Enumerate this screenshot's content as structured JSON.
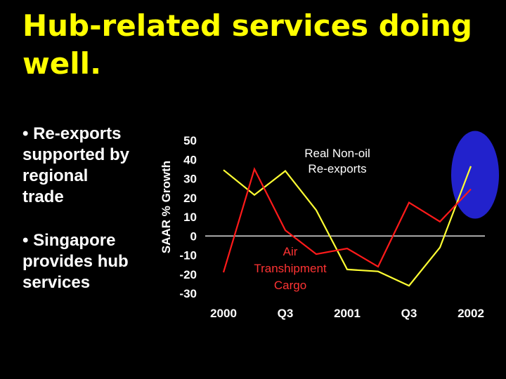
{
  "slide": {
    "title": "Hub-related services doing well.",
    "bullets": [
      "• Re-exports\nsupported by\nregional\ntrade",
      "• Singapore\nprovides hub\nservices"
    ]
  },
  "chart_data": {
    "type": "line",
    "ylabel": "SAAR % Growth",
    "ylim": [
      -30,
      50
    ],
    "yticks": [
      50,
      40,
      30,
      20,
      10,
      0,
      -10,
      -20,
      -30
    ],
    "x": [
      0,
      1,
      2,
      3,
      4,
      5,
      6,
      7,
      8
    ],
    "xtick_labels": [
      "2000",
      "Q3",
      "2001",
      "Q3",
      "2002"
    ],
    "xtick_positions": [
      0,
      2,
      4,
      6,
      8
    ],
    "zero_line": true,
    "series": [
      {
        "name": "Real Non-oil Re-exports",
        "color": "#ffff33",
        "values": [
          34.5,
          21.5,
          34,
          13.5,
          -17.5,
          -18.5,
          -26,
          -6,
          36.5
        ]
      },
      {
        "name": "Air Transhipment Cargo",
        "color": "#ff1a1a",
        "values": [
          -19,
          35,
          3,
          -9.5,
          -6.5,
          -16,
          17.5,
          7.5,
          24.5
        ]
      }
    ],
    "annotations": [
      {
        "text": "Real Non-oil\nRe-exports",
        "color": "#ffffff"
      },
      {
        "text": "Air\nTranshipment\nCargo",
        "color": "#ff3333"
      }
    ],
    "highlight": {
      "x": 8,
      "y_from": 12,
      "y_to": 52,
      "color": "#2222cc"
    }
  }
}
